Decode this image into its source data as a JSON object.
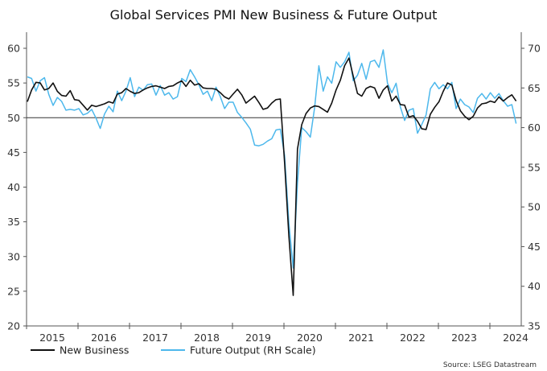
{
  "chart_data": {
    "type": "line",
    "title": "Global Services PMI New Business & Future Output",
    "source": "Source: LSEG Datastream",
    "frequency": "monthly",
    "x_tick_labels": [
      "2015",
      "2016",
      "2017",
      "2018",
      "2019",
      "2020",
      "2021",
      "2022",
      "2023",
      "2024"
    ],
    "x_range_years": [
      2015,
      2024.6
    ],
    "left_axis": {
      "ylim": [
        20,
        60
      ],
      "ticks": [
        20,
        25,
        30,
        35,
        40,
        45,
        50,
        55,
        60
      ]
    },
    "right_axis": {
      "ylim": [
        35,
        70
      ],
      "ticks": [
        35,
        40,
        45,
        50,
        55,
        60,
        65,
        70
      ]
    },
    "reference_line": {
      "axis": "left",
      "value": 50
    },
    "legend_position": "bottom-left",
    "series": [
      {
        "name": "New Business",
        "axis": "left",
        "color": "#111111",
        "values": [
          52.3,
          54.0,
          55.1,
          55.0,
          54.0,
          54.2,
          55.0,
          53.8,
          53.2,
          53.1,
          53.9,
          52.6,
          52.5,
          51.8,
          51.1,
          51.8,
          51.6,
          51.8,
          52.0,
          52.3,
          52.1,
          53.4,
          53.6,
          54.2,
          53.8,
          53.5,
          53.6,
          54.0,
          54.3,
          54.5,
          54.6,
          54.4,
          54.2,
          54.5,
          54.6,
          55.0,
          55.3,
          54.5,
          55.4,
          54.7,
          54.9,
          54.3,
          54.2,
          54.2,
          54.1,
          53.6,
          53.0,
          52.7,
          53.4,
          54.1,
          53.3,
          52.1,
          52.6,
          53.1,
          52.2,
          51.2,
          51.4,
          52.1,
          52.6,
          52.7,
          43.5,
          33.0,
          24.4,
          45.5,
          49.0,
          50.6,
          51.4,
          51.7,
          51.6,
          51.2,
          50.8,
          52.1,
          54.0,
          55.4,
          57.5,
          58.6,
          56.0,
          53.5,
          53.1,
          54.2,
          54.5,
          54.3,
          52.8,
          54.0,
          54.6,
          52.4,
          53.1,
          51.9,
          51.8,
          50.1,
          50.3,
          49.5,
          48.4,
          48.3,
          50.5,
          51.5,
          52.3,
          53.8,
          55.0,
          54.7,
          52.5,
          51.0,
          50.2,
          49.7,
          50.2,
          51.4,
          52.0,
          52.1,
          52.4,
          52.2,
          53.0,
          52.4,
          52.9,
          53.3,
          52.4
        ]
      },
      {
        "name": "Future Output (RH Scale)",
        "axis": "right",
        "color": "#4db8ec",
        "values": [
          66.4,
          66.2,
          64.6,
          65.9,
          66.3,
          64.2,
          62.8,
          63.8,
          63.3,
          62.2,
          62.3,
          62.2,
          62.4,
          61.6,
          61.8,
          62.3,
          61.2,
          59.9,
          61.7,
          62.7,
          62.0,
          64.6,
          63.4,
          64.6,
          66.3,
          63.9,
          65.1,
          64.7,
          65.4,
          65.5,
          64.1,
          65.3,
          64.1,
          64.4,
          63.6,
          63.9,
          66.2,
          65.8,
          67.3,
          66.4,
          65.4,
          64.2,
          64.6,
          63.4,
          65.1,
          63.9,
          62.4,
          63.2,
          63.2,
          61.9,
          61.3,
          60.6,
          59.8,
          57.8,
          57.7,
          57.9,
          58.3,
          58.6,
          59.7,
          59.8,
          56.5,
          48.0,
          42.3,
          53.0,
          60.0,
          59.5,
          58.8,
          62.5,
          67.8,
          64.6,
          66.4,
          65.6,
          68.3,
          67.6,
          68.3,
          69.5,
          65.9,
          66.6,
          68.1,
          66.1,
          68.3,
          68.5,
          67.6,
          69.8,
          65.6,
          64.4,
          65.6,
          62.6,
          60.9,
          62.2,
          62.4,
          59.3,
          60.4,
          61.6,
          64.9,
          65.7,
          64.9,
          65.4,
          64.9,
          65.7,
          62.4,
          63.6,
          62.9,
          62.6,
          61.9,
          63.7,
          64.3,
          63.6,
          64.4,
          63.7,
          64.3,
          63.4,
          62.7,
          62.9,
          60.5
        ]
      }
    ]
  }
}
